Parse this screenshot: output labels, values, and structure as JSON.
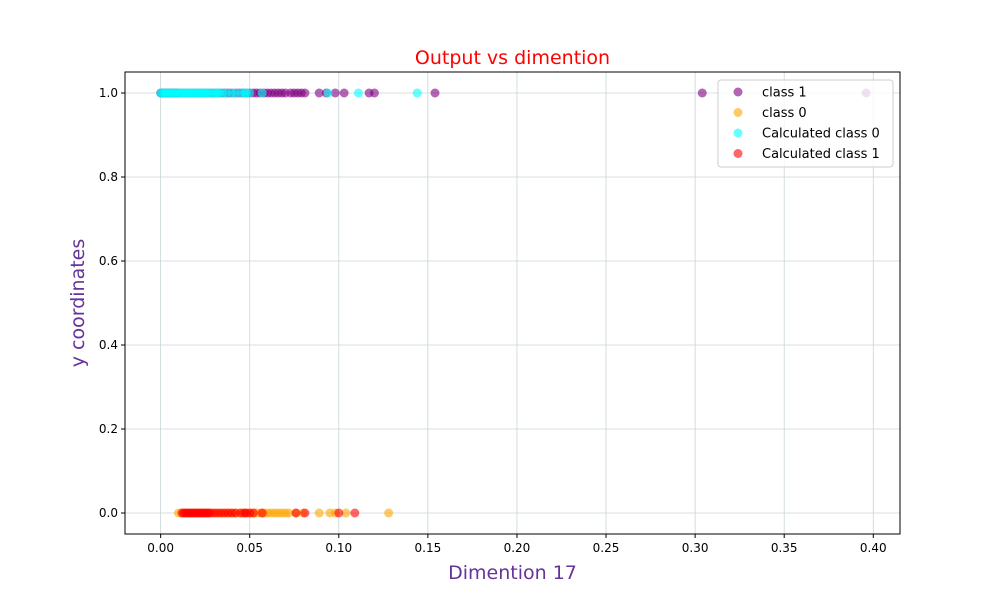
{
  "chart_data": {
    "type": "scatter",
    "title": "Output vs dimention",
    "xlabel": "Dimention 17",
    "ylabel": "y coordinates",
    "xlim": [
      -0.02,
      0.415
    ],
    "ylim": [
      -0.05,
      1.05
    ],
    "xticks": [
      "0.00",
      "0.05",
      "0.10",
      "0.15",
      "0.20",
      "0.25",
      "0.30",
      "0.35",
      "0.40"
    ],
    "yticks": [
      "0.0",
      "0.2",
      "0.4",
      "0.6",
      "0.8",
      "1.0"
    ],
    "grid": true,
    "legend_position": "top-right",
    "colors": {
      "title": "#ff0000",
      "axis_label": "#663399",
      "grid": "#c8d4d8"
    },
    "series": [
      {
        "name": "class 1",
        "color": "#800080",
        "y": 1,
        "x": [
          0.0,
          0.001,
          0.002,
          0.003,
          0.004,
          0.005,
          0.006,
          0.007,
          0.008,
          0.009,
          0.01,
          0.012,
          0.014,
          0.016,
          0.018,
          0.02,
          0.022,
          0.024,
          0.026,
          0.028,
          0.03,
          0.032,
          0.034,
          0.036,
          0.038,
          0.04,
          0.042,
          0.044,
          0.046,
          0.048,
          0.05,
          0.052,
          0.054,
          0.056,
          0.058,
          0.06,
          0.062,
          0.064,
          0.066,
          0.068,
          0.07,
          0.073,
          0.075,
          0.077,
          0.079,
          0.081,
          0.089,
          0.093,
          0.098,
          0.103,
          0.117,
          0.12,
          0.154,
          0.304,
          0.396
        ]
      },
      {
        "name": "class 0",
        "color": "#ffa500",
        "y": 0,
        "x": [
          0.01,
          0.012,
          0.014,
          0.016,
          0.018,
          0.02,
          0.022,
          0.024,
          0.026,
          0.028,
          0.03,
          0.032,
          0.034,
          0.036,
          0.038,
          0.04,
          0.042,
          0.044,
          0.046,
          0.048,
          0.05,
          0.052,
          0.054,
          0.056,
          0.058,
          0.06,
          0.062,
          0.064,
          0.066,
          0.068,
          0.07,
          0.072,
          0.076,
          0.08,
          0.089,
          0.095,
          0.098,
          0.104,
          0.128
        ]
      },
      {
        "name": "Calculated class 0",
        "color": "#00ffff",
        "y": 1,
        "x": [
          0.0,
          0.001,
          0.002,
          0.003,
          0.004,
          0.005,
          0.006,
          0.007,
          0.008,
          0.009,
          0.01,
          0.011,
          0.012,
          0.013,
          0.014,
          0.015,
          0.016,
          0.017,
          0.018,
          0.019,
          0.02,
          0.021,
          0.022,
          0.023,
          0.024,
          0.025,
          0.026,
          0.027,
          0.028,
          0.03,
          0.031,
          0.032,
          0.033,
          0.035,
          0.037,
          0.04,
          0.042,
          0.045,
          0.047,
          0.048,
          0.05,
          0.057,
          0.094,
          0.111,
          0.144
        ]
      },
      {
        "name": "Calculated class 1",
        "color": "#ff0000",
        "y": 0,
        "x": [
          0.012,
          0.013,
          0.014,
          0.015,
          0.016,
          0.017,
          0.018,
          0.019,
          0.02,
          0.021,
          0.022,
          0.023,
          0.024,
          0.025,
          0.026,
          0.027,
          0.028,
          0.03,
          0.032,
          0.034,
          0.036,
          0.038,
          0.04,
          0.042,
          0.045,
          0.047,
          0.048,
          0.05,
          0.052,
          0.057,
          0.076,
          0.081,
          0.1,
          0.109
        ]
      }
    ]
  }
}
